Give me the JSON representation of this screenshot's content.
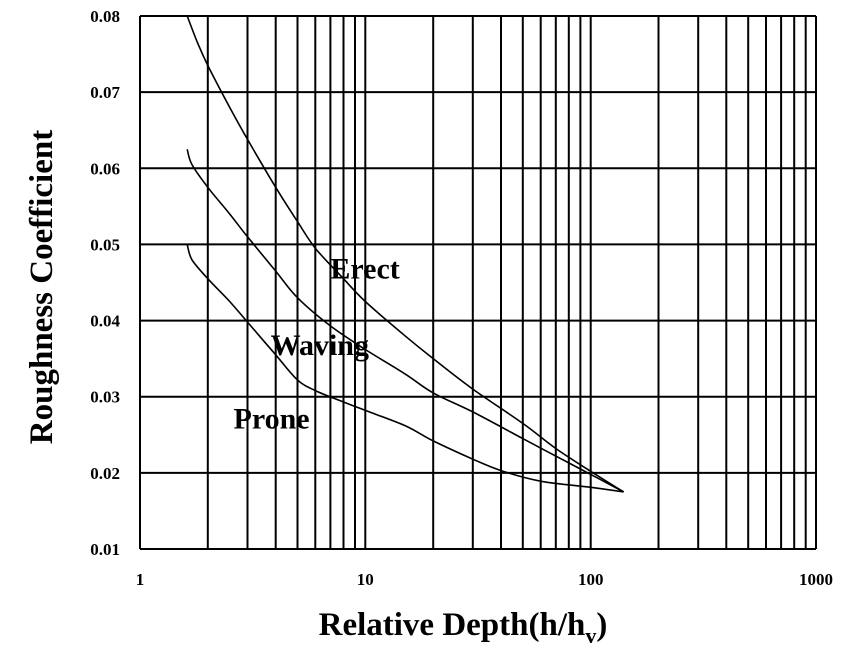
{
  "chart_data": {
    "type": "line",
    "x_scale": "log",
    "xlim": [
      1,
      1000
    ],
    "ylim": [
      0.01,
      0.08
    ],
    "grid": true,
    "xlabel": "Relative Depth(h/h",
    "xlabel_subscript": "v",
    "xlabel_close": ")",
    "ylabel": "Roughness Coefficient",
    "x_tick_labels": [
      "1",
      "10",
      "100",
      "1000"
    ],
    "y_tick_labels": [
      "0.01",
      "0.02",
      "0.03",
      "0.04",
      "0.05",
      "0.06",
      "0.07",
      "0.08"
    ],
    "series": [
      {
        "name": "Erect",
        "x": [
          1.62,
          1.8,
          2.0,
          2.5,
          3.0,
          4.0,
          5.0,
          6.0,
          8.0,
          10,
          15,
          20,
          30,
          50,
          70,
          100,
          140
        ],
        "y": [
          0.08,
          0.0765,
          0.0735,
          0.068,
          0.0638,
          0.0575,
          0.053,
          0.0495,
          0.0455,
          0.0425,
          0.038,
          0.035,
          0.031,
          0.0265,
          0.0232,
          0.0202,
          0.0175
        ]
      },
      {
        "name": "Waving",
        "x": [
          1.62,
          1.7,
          2.0,
          2.5,
          3.0,
          4.0,
          5.0,
          7.0,
          10,
          15,
          20,
          30,
          50,
          70,
          100,
          140
        ],
        "y": [
          0.0625,
          0.0605,
          0.0575,
          0.054,
          0.051,
          0.0465,
          0.043,
          0.0393,
          0.0362,
          0.033,
          0.0305,
          0.028,
          0.0245,
          0.0222,
          0.0198,
          0.0175
        ]
      },
      {
        "name": "Prone",
        "x": [
          1.62,
          1.7,
          2.0,
          2.5,
          3.0,
          4.0,
          5.0,
          6.0,
          8.0,
          10,
          15,
          20,
          30,
          40,
          60,
          100,
          140
        ],
        "y": [
          0.05,
          0.048,
          0.0455,
          0.0425,
          0.0398,
          0.0355,
          0.0322,
          0.0308,
          0.0293,
          0.0282,
          0.0262,
          0.0242,
          0.0218,
          0.0203,
          0.0189,
          0.0181,
          0.0175
        ]
      }
    ]
  }
}
